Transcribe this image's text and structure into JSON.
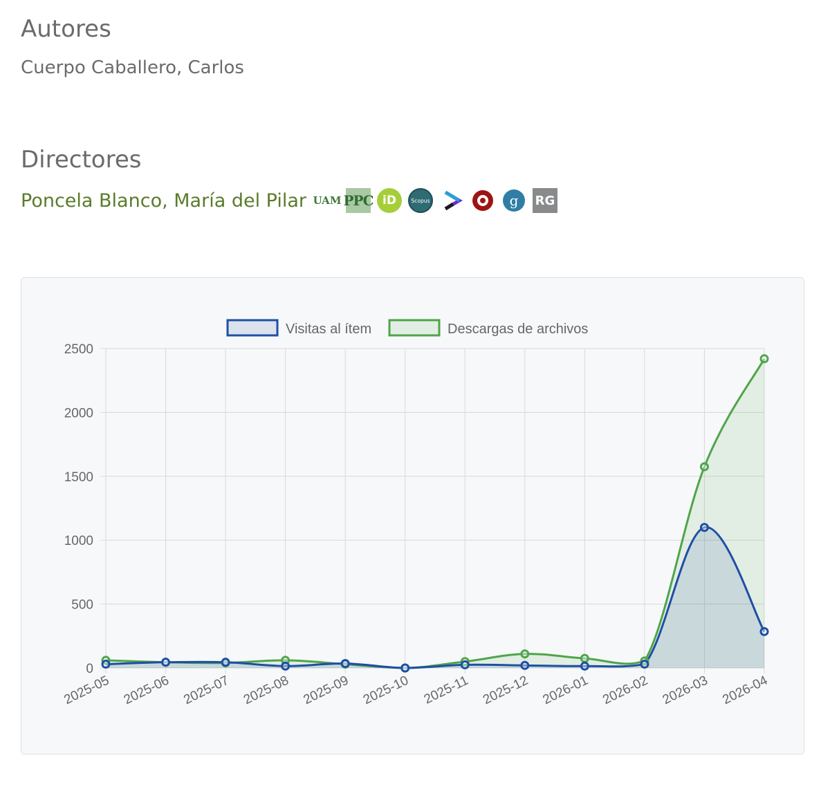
{
  "authors": {
    "heading": "Autores",
    "name": "Cuerpo Caballero, Carlos"
  },
  "directors": {
    "heading": "Directores",
    "name": "Poncela Blanco, María del Pilar",
    "profiles": [
      {
        "name": "uam-icon",
        "text": "UAM"
      },
      {
        "name": "ppc-icon",
        "text": "PPC"
      },
      {
        "name": "orcid-icon",
        "text": "iD"
      },
      {
        "name": "scopus-icon",
        "text": "Scopus"
      },
      {
        "name": "dialnet-icon",
        "text": ""
      },
      {
        "name": "wos-icon",
        "text": ""
      },
      {
        "name": "google-scholar-icon",
        "text": "g"
      },
      {
        "name": "researchgate-icon",
        "text": "RG"
      }
    ]
  },
  "colors": {
    "visits": "#1f4fa3",
    "downloads": "#4ea54a"
  },
  "chart_data": {
    "type": "line",
    "categories": [
      "2025-05",
      "2025-06",
      "2025-07",
      "2025-08",
      "2025-09",
      "2025-10",
      "2025-11",
      "2025-12",
      "2026-01",
      "2026-02",
      "2026-03",
      "2026-04"
    ],
    "series": [
      {
        "name": "Visitas al ítem",
        "values": [
          30,
          45,
          45,
          15,
          35,
          0,
          25,
          20,
          15,
          30,
          1100,
          285
        ]
      },
      {
        "name": "Descargas de archivos",
        "values": [
          60,
          45,
          40,
          60,
          30,
          0,
          50,
          110,
          75,
          55,
          1575,
          2420
        ]
      }
    ],
    "y_ticks": [
      "0",
      "500",
      "1000",
      "1500",
      "2000",
      "2500"
    ],
    "ylim": [
      0,
      2500
    ],
    "grid": true,
    "legend": "top-center"
  }
}
